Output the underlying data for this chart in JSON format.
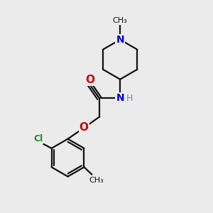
{
  "bg_color": "#ebebeb",
  "bond_color": "#111111",
  "N_color": "#0000cc",
  "O_color": "#cc0000",
  "Cl_color": "#228B22",
  "H_color": "#4499aa",
  "line_width": 1.6,
  "figsize": [
    3.0,
    3.0
  ],
  "dpi": 100,
  "methyl_label": "CH₃",
  "N_label": "N",
  "O_label": "O",
  "NH_label": "N",
  "H_label": "H",
  "Cl_label": "Cl"
}
